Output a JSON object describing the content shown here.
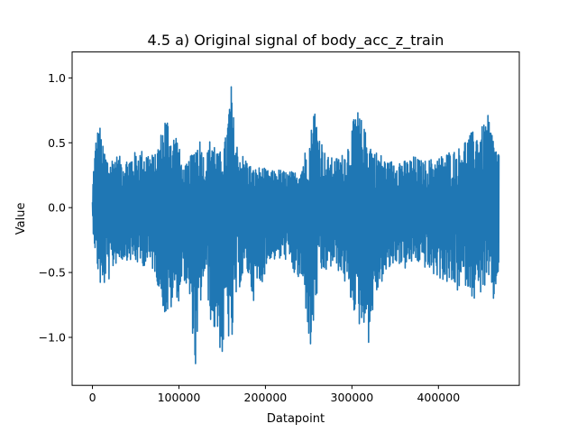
{
  "chart_data": {
    "type": "line",
    "title": "4.5 a) Original signal of body_acc_z_train",
    "xlabel": "Datapoint",
    "ylabel": "Value",
    "xlim": [
      -23500,
      493500
    ],
    "ylim": [
      -1.37,
      1.2
    ],
    "x_ticks": [
      0,
      100000,
      200000,
      300000,
      400000
    ],
    "x_tick_labels": [
      "0",
      "100000",
      "200000",
      "300000",
      "400000"
    ],
    "y_ticks": [
      -1.0,
      -0.5,
      0.0,
      0.5,
      1.0
    ],
    "y_tick_labels": [
      "−1.0",
      "−0.5",
      "0.0",
      "0.5",
      "1.0"
    ],
    "grid": false,
    "line_color": "#1f77b4",
    "series": [
      {
        "x": [
          0,
          1000,
          4000,
          8000,
          12000,
          16000,
          20000,
          25000,
          30000,
          38000,
          46000,
          55000,
          65000,
          72000,
          80000,
          84000,
          88000,
          92000,
          96000,
          100000,
          105000,
          110000,
          115000,
          120000,
          125000,
          130000,
          138000,
          145000,
          150000,
          155000,
          160000,
          165000,
          170000,
          178000,
          186000,
          195000,
          205000,
          215000,
          225000,
          235000,
          242000,
          248000,
          252000,
          256000,
          262000,
          270000,
          280000,
          290000,
          298000,
          305000,
          310000,
          315000,
          320000,
          325000,
          333000,
          342000,
          352000,
          362000,
          372000,
          382000,
          392000,
          402000,
          412000,
          422000,
          432000,
          442000,
          450000,
          458000,
          465000,
          470000
        ],
        "upper": [
          0.05,
          0.3,
          0.55,
          0.67,
          0.48,
          0.42,
          0.36,
          0.42,
          0.4,
          0.38,
          0.42,
          0.45,
          0.44,
          0.4,
          0.6,
          0.72,
          0.7,
          0.52,
          0.62,
          0.48,
          0.3,
          0.35,
          0.42,
          0.52,
          0.55,
          0.35,
          0.6,
          0.42,
          0.45,
          0.58,
          0.99,
          0.55,
          0.44,
          0.38,
          0.3,
          0.32,
          0.28,
          0.3,
          0.28,
          0.28,
          0.35,
          0.5,
          0.55,
          0.82,
          0.6,
          0.4,
          0.38,
          0.42,
          0.55,
          0.78,
          0.7,
          0.6,
          0.55,
          0.45,
          0.42,
          0.35,
          0.4,
          0.36,
          0.4,
          0.36,
          0.38,
          0.4,
          0.44,
          0.45,
          0.55,
          0.6,
          0.62,
          0.72,
          0.5,
          0.45
        ],
        "lower": [
          -0.05,
          -0.2,
          -0.4,
          -0.58,
          -0.7,
          -0.5,
          -0.58,
          -0.45,
          -0.42,
          -0.4,
          -0.42,
          -0.45,
          -0.45,
          -0.5,
          -0.72,
          -0.85,
          -0.85,
          -0.78,
          -0.65,
          -0.75,
          -0.52,
          -0.68,
          -0.9,
          -1.36,
          -0.75,
          -0.52,
          -0.95,
          -1.0,
          -1.2,
          -0.85,
          -1.2,
          -0.75,
          -0.62,
          -0.48,
          -0.72,
          -0.6,
          -0.4,
          -0.42,
          -0.4,
          -0.55,
          -0.6,
          -0.85,
          -1.18,
          -0.9,
          -0.55,
          -0.5,
          -0.45,
          -0.55,
          -0.72,
          -0.85,
          -0.95,
          -0.88,
          -1.08,
          -0.75,
          -0.6,
          -0.5,
          -0.42,
          -0.48,
          -0.42,
          -0.45,
          -0.52,
          -0.55,
          -0.6,
          -0.65,
          -0.6,
          -0.72,
          -0.65,
          -0.6,
          -0.77,
          -0.45
        ]
      }
    ]
  }
}
